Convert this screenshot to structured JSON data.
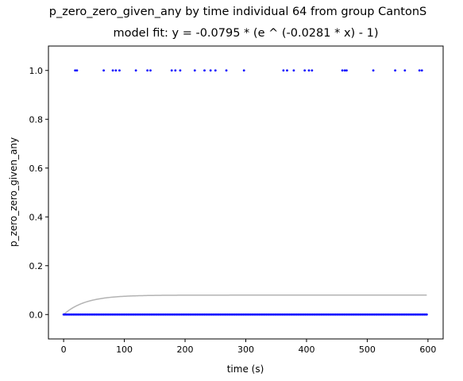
{
  "chart_data": {
    "type": "scatter",
    "title": "p_zero_zero_given_any by time individual 64 from group CantonS",
    "subtitle": "model fit: y = -0.0795 * (e ^ (-0.0281 * x) - 1)",
    "xlabel": "time (s)",
    "ylabel": "p_zero_zero_given_any",
    "xlim": [
      -25,
      625
    ],
    "ylim": [
      -0.1,
      1.1
    ],
    "x_ticks": [
      0,
      100,
      200,
      300,
      400,
      500,
      600
    ],
    "y_ticks": [
      0.0,
      0.2,
      0.4,
      0.6,
      0.8,
      1.0
    ],
    "y_tick_labels": [
      "0.0",
      "0.2",
      "0.4",
      "0.6",
      "0.8",
      "1.0"
    ],
    "grid": false,
    "legend": "none",
    "series": [
      {
        "kind": "points",
        "color": "#0000ff",
        "points_at_one_x": [
          19,
          22,
          66,
          81,
          86,
          92,
          119,
          138,
          143,
          178,
          184,
          192,
          216,
          232,
          242,
          250,
          268,
          297,
          362,
          368,
          379,
          397,
          404,
          409,
          459,
          463,
          466,
          510,
          546,
          562,
          586,
          590
        ],
        "points_at_zero_x_range": [
          0,
          598
        ],
        "points_at_zero_step": 2
      },
      {
        "kind": "fit-curve",
        "color": "#b3b3b3",
        "model": {
          "a": -0.0795,
          "b": -0.0281
        },
        "x_range": [
          0,
          598
        ]
      }
    ]
  }
}
